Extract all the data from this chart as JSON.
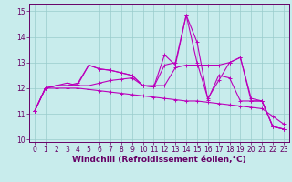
{
  "xlabel": "Windchill (Refroidissement éolien,°C)",
  "background_color": "#c8ecec",
  "line_color": "#bb00bb",
  "grid_color": "#99cccc",
  "xlim": [
    -0.5,
    23.5
  ],
  "ylim": [
    9.9,
    15.3
  ],
  "xticks": [
    0,
    1,
    2,
    3,
    4,
    5,
    6,
    7,
    8,
    9,
    10,
    11,
    12,
    13,
    14,
    15,
    16,
    17,
    18,
    19,
    20,
    21,
    22,
    23
  ],
  "yticks": [
    10,
    11,
    12,
    13,
    14,
    15
  ],
  "series": [
    [
      11.1,
      12.0,
      12.1,
      12.1,
      12.15,
      12.9,
      12.75,
      12.7,
      12.6,
      12.5,
      12.1,
      12.05,
      13.3,
      12.9,
      14.85,
      13.8,
      11.55,
      12.5,
      12.4,
      11.5,
      11.5,
      11.5,
      10.5,
      10.4
    ],
    [
      11.1,
      12.0,
      12.1,
      12.1,
      12.2,
      12.9,
      12.75,
      12.7,
      12.6,
      12.5,
      12.1,
      12.05,
      12.9,
      13.0,
      14.85,
      13.0,
      11.6,
      12.3,
      13.0,
      13.2,
      11.6,
      11.5,
      10.5,
      10.4
    ],
    [
      11.1,
      12.0,
      12.1,
      12.2,
      12.1,
      12.1,
      12.2,
      12.3,
      12.35,
      12.4,
      12.1,
      12.1,
      12.1,
      12.8,
      12.9,
      12.9,
      12.9,
      12.9,
      13.0,
      13.2,
      11.5,
      11.5,
      10.5,
      10.4
    ],
    [
      11.1,
      12.0,
      12.0,
      12.0,
      12.0,
      11.95,
      11.9,
      11.85,
      11.8,
      11.75,
      11.7,
      11.65,
      11.6,
      11.55,
      11.5,
      11.5,
      11.45,
      11.4,
      11.35,
      11.3,
      11.25,
      11.2,
      10.9,
      10.6
    ]
  ],
  "marker": "+",
  "markersize": 3,
  "linewidth": 0.8,
  "tick_fontsize": 5.5,
  "xlabel_fontsize": 6.5,
  "axis_color": "#660066",
  "spine_color": "#660066"
}
